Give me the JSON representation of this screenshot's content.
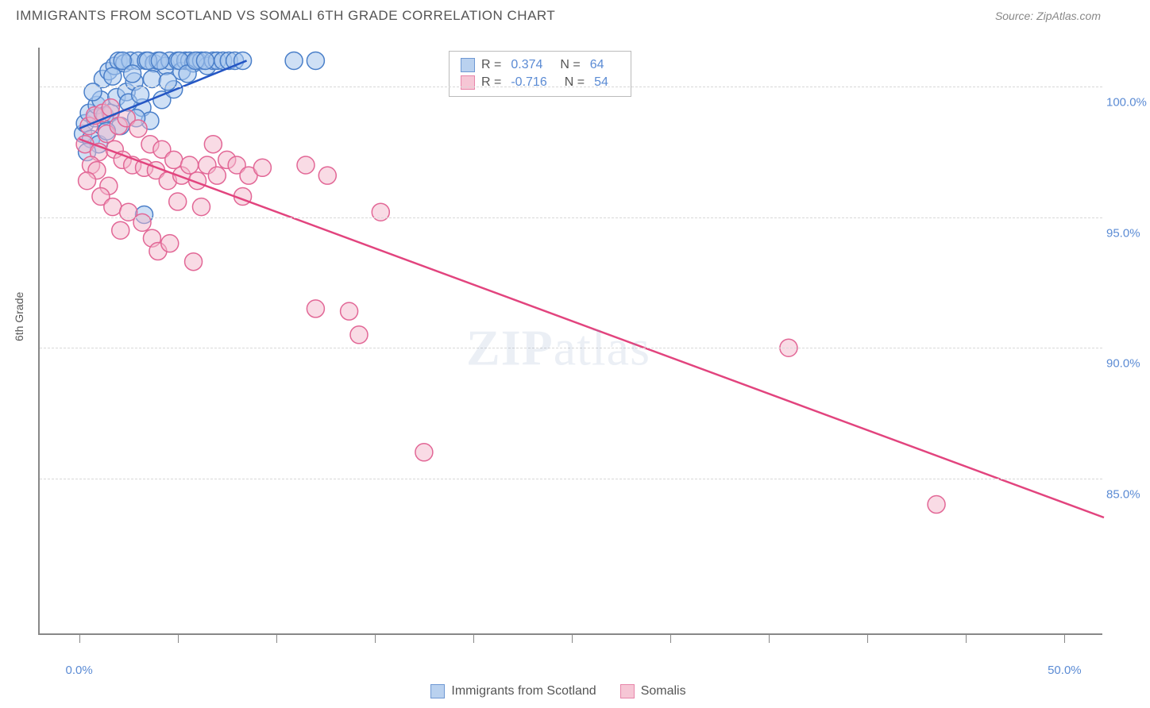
{
  "title": "IMMIGRANTS FROM SCOTLAND VS SOMALI 6TH GRADE CORRELATION CHART",
  "source": "Source: ZipAtlas.com",
  "y_axis_label": "6th Grade",
  "watermark_bold": "ZIP",
  "watermark_rest": "atlas",
  "x_range": [
    -2,
    52
  ],
  "y_range": [
    79,
    101.5
  ],
  "x_ticks": [
    0,
    5,
    10,
    15,
    20,
    25,
    30,
    35,
    40,
    45,
    50
  ],
  "x_tick_labels": {
    "0": "0.0%",
    "50": "50.0%"
  },
  "y_gridlines": [
    85,
    90,
    95,
    100
  ],
  "y_tick_labels": {
    "85": "85.0%",
    "90": "90.0%",
    "95": "95.0%",
    "100": "100.0%"
  },
  "series": [
    {
      "name": "Immigrants from Scotland",
      "legend_label": "Immigrants from Scotland",
      "fill": "#a8c6ec",
      "stroke": "#4a7fc9",
      "fill_opacity": 0.55,
      "line_color": "#2456c4",
      "line_width": 2.5,
      "marker_radius": 11,
      "r_label": "R =",
      "r_value": "0.374",
      "n_label": "N =",
      "n_value": "64",
      "trend": {
        "x1": 0,
        "y1": 98.4,
        "x2": 8.5,
        "y2": 101
      },
      "points": [
        [
          0.2,
          98.2
        ],
        [
          0.3,
          98.6
        ],
        [
          0.5,
          99.0
        ],
        [
          0.6,
          98.0
        ],
        [
          0.8,
          98.8
        ],
        [
          0.9,
          99.3
        ],
        [
          1.0,
          97.8
        ],
        [
          1.1,
          99.5
        ],
        [
          1.2,
          100.3
        ],
        [
          1.3,
          98.9
        ],
        [
          1.5,
          100.6
        ],
        [
          1.6,
          99.0
        ],
        [
          1.8,
          100.8
        ],
        [
          1.9,
          99.6
        ],
        [
          2.0,
          101.0
        ],
        [
          2.1,
          98.5
        ],
        [
          2.3,
          100.9
        ],
        [
          2.4,
          99.8
        ],
        [
          2.6,
          101.0
        ],
        [
          2.8,
          100.2
        ],
        [
          3.0,
          101.0
        ],
        [
          3.2,
          99.2
        ],
        [
          3.4,
          101.0
        ],
        [
          3.6,
          98.7
        ],
        [
          3.8,
          100.9
        ],
        [
          4.0,
          101.0
        ],
        [
          4.2,
          99.5
        ],
        [
          4.4,
          100.8
        ],
        [
          4.6,
          101.0
        ],
        [
          4.8,
          99.9
        ],
        [
          5.0,
          101.0
        ],
        [
          5.2,
          100.6
        ],
        [
          5.4,
          101.0
        ],
        [
          5.6,
          101.0
        ],
        [
          5.8,
          100.9
        ],
        [
          6.0,
          101.0
        ],
        [
          6.2,
          101.0
        ],
        [
          6.5,
          100.8
        ],
        [
          6.8,
          101.0
        ],
        [
          7.0,
          101.0
        ],
        [
          0.4,
          97.5
        ],
        [
          0.7,
          99.8
        ],
        [
          1.4,
          98.3
        ],
        [
          1.7,
          100.4
        ],
        [
          2.2,
          101.0
        ],
        [
          2.5,
          99.4
        ],
        [
          2.7,
          100.5
        ],
        [
          2.9,
          98.8
        ],
        [
          3.1,
          99.7
        ],
        [
          3.5,
          101.0
        ],
        [
          3.7,
          100.3
        ],
        [
          4.1,
          101.0
        ],
        [
          4.5,
          100.2
        ],
        [
          5.1,
          101.0
        ],
        [
          5.5,
          100.5
        ],
        [
          5.9,
          101.0
        ],
        [
          6.4,
          101.0
        ],
        [
          3.3,
          95.1
        ],
        [
          7.3,
          101.0
        ],
        [
          7.6,
          101.0
        ],
        [
          7.9,
          101.0
        ],
        [
          8.3,
          101.0
        ],
        [
          10.9,
          101.0
        ],
        [
          12.0,
          101.0
        ]
      ]
    },
    {
      "name": "Somalis",
      "legend_label": "Somalis",
      "fill": "#f4b8cb",
      "stroke": "#e26796",
      "fill_opacity": 0.5,
      "line_color": "#e2447e",
      "line_width": 2.5,
      "marker_radius": 11,
      "r_label": "R =",
      "r_value": "-0.716",
      "n_label": "N =",
      "n_value": "54",
      "trend": {
        "x1": 0,
        "y1": 98.0,
        "x2": 52,
        "y2": 83.5
      },
      "points": [
        [
          0.5,
          98.5
        ],
        [
          0.3,
          97.8
        ],
        [
          0.8,
          98.9
        ],
        [
          1.0,
          97.5
        ],
        [
          1.2,
          99.0
        ],
        [
          0.6,
          97.0
        ],
        [
          1.4,
          98.2
        ],
        [
          1.6,
          99.2
        ],
        [
          0.9,
          96.8
        ],
        [
          1.8,
          97.6
        ],
        [
          0.4,
          96.4
        ],
        [
          2.0,
          98.5
        ],
        [
          2.2,
          97.2
        ],
        [
          1.5,
          96.2
        ],
        [
          2.4,
          98.8
        ],
        [
          2.7,
          97.0
        ],
        [
          1.1,
          95.8
        ],
        [
          3.0,
          98.4
        ],
        [
          3.3,
          96.9
        ],
        [
          1.7,
          95.4
        ],
        [
          3.6,
          97.8
        ],
        [
          2.5,
          95.2
        ],
        [
          3.9,
          96.8
        ],
        [
          3.2,
          94.8
        ],
        [
          4.2,
          97.6
        ],
        [
          4.5,
          96.4
        ],
        [
          2.1,
          94.5
        ],
        [
          4.8,
          97.2
        ],
        [
          3.7,
          94.2
        ],
        [
          5.2,
          96.6
        ],
        [
          4.0,
          93.7
        ],
        [
          5.6,
          97.0
        ],
        [
          5.0,
          95.6
        ],
        [
          6.0,
          96.4
        ],
        [
          4.6,
          94.0
        ],
        [
          6.5,
          97.0
        ],
        [
          6.2,
          95.4
        ],
        [
          7.0,
          96.6
        ],
        [
          7.5,
          97.2
        ],
        [
          8.0,
          97.0
        ],
        [
          8.6,
          96.6
        ],
        [
          6.8,
          97.8
        ],
        [
          5.8,
          93.3
        ],
        [
          9.3,
          96.9
        ],
        [
          8.3,
          95.8
        ],
        [
          11.5,
          97.0
        ],
        [
          12.6,
          96.6
        ],
        [
          12.0,
          91.5
        ],
        [
          15.3,
          95.2
        ],
        [
          13.7,
          91.4
        ],
        [
          14.2,
          90.5
        ],
        [
          17.5,
          86.0
        ],
        [
          36.0,
          90.0
        ],
        [
          43.5,
          84.0
        ]
      ]
    }
  ]
}
